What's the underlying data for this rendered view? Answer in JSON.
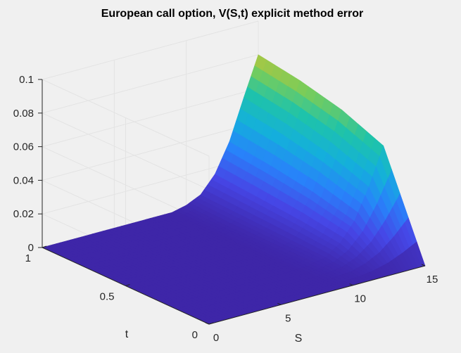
{
  "chart_data": {
    "type": "surface",
    "title": "European call option, V(S,t) explicit method error",
    "xlabel": "S",
    "ylabel": "t",
    "zlabel": "",
    "xlim": [
      0,
      15
    ],
    "ylim": [
      0,
      1
    ],
    "zlim": [
      0,
      0.1
    ],
    "x_ticks": [
      "0",
      "5",
      "10",
      "15"
    ],
    "y_ticks": [
      "0",
      "0.5",
      "1"
    ],
    "z_ticks": [
      "0",
      "0.02",
      "0.04",
      "0.06",
      "0.08",
      "0.1"
    ],
    "grid": true,
    "colormap": "parula",
    "surface": {
      "t": [
        0,
        0.25,
        0.5,
        0.75,
        1
      ],
      "S": [
        0,
        1,
        2,
        3,
        4,
        5,
        6,
        7,
        8,
        9,
        10,
        11,
        12,
        13,
        14,
        15
      ],
      "error": [
        [
          0,
          0,
          0,
          0,
          0,
          0,
          0,
          0,
          0,
          0,
          0,
          0,
          0,
          0,
          0,
          0
        ],
        [
          0,
          0,
          0,
          0,
          0,
          0,
          0,
          0,
          0,
          0,
          0.001,
          0.003,
          0.009,
          0.02,
          0.038,
          0.06
        ],
        [
          0,
          0,
          0,
          0,
          0,
          0,
          0,
          0,
          0,
          0,
          0.001,
          0.004,
          0.012,
          0.026,
          0.047,
          0.07
        ],
        [
          0,
          0,
          0,
          0,
          0,
          0,
          0,
          0,
          0,
          0,
          0.001,
          0.005,
          0.014,
          0.03,
          0.053,
          0.076
        ],
        [
          0,
          0,
          0,
          0,
          0,
          0,
          0,
          0,
          0,
          0,
          0.002,
          0.006,
          0.016,
          0.033,
          0.057,
          0.08
        ]
      ]
    }
  }
}
